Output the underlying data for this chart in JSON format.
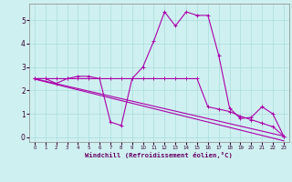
{
  "title": "",
  "xlabel": "Windchill (Refroidissement éolien,°C)",
  "bg_color": "#cff0f0",
  "grid_color": "#aadddd",
  "line_color": "#aa00aa",
  "xlim": [
    -0.5,
    23.5
  ],
  "ylim": [
    -0.2,
    5.7
  ],
  "xticks": [
    0,
    1,
    2,
    3,
    4,
    5,
    6,
    7,
    8,
    9,
    10,
    11,
    12,
    13,
    14,
    15,
    16,
    17,
    18,
    19,
    20,
    21,
    22,
    23
  ],
  "yticks": [
    0,
    1,
    2,
    3,
    4,
    5
  ],
  "series1_x": [
    0,
    1,
    2,
    3,
    4,
    5,
    6,
    7,
    8,
    9,
    10,
    11,
    12,
    13,
    14,
    15,
    16,
    17,
    18,
    19,
    20,
    21,
    22,
    23
  ],
  "series1_y": [
    2.5,
    2.5,
    2.3,
    2.5,
    2.6,
    2.6,
    2.5,
    0.65,
    0.5,
    2.5,
    3.0,
    4.1,
    5.35,
    4.75,
    5.35,
    5.2,
    5.2,
    3.5,
    1.25,
    0.8,
    0.85,
    1.3,
    1.0,
    0.05
  ],
  "series2_x": [
    0,
    1,
    2,
    3,
    4,
    5,
    6,
    7,
    8,
    9,
    10,
    11,
    12,
    13,
    14,
    15,
    16,
    17,
    18,
    19,
    20,
    21,
    22,
    23
  ],
  "series2_y": [
    2.5,
    2.5,
    2.5,
    2.5,
    2.5,
    2.5,
    2.5,
    2.5,
    2.5,
    2.5,
    2.5,
    2.5,
    2.5,
    2.5,
    2.5,
    2.5,
    1.3,
    1.2,
    1.1,
    0.9,
    0.75,
    0.6,
    0.45,
    0.05
  ],
  "trend1_x": [
    0,
    23
  ],
  "trend1_y": [
    2.5,
    0.05
  ],
  "trend2_x": [
    0,
    23
  ],
  "trend2_y": [
    2.48,
    -0.15
  ]
}
